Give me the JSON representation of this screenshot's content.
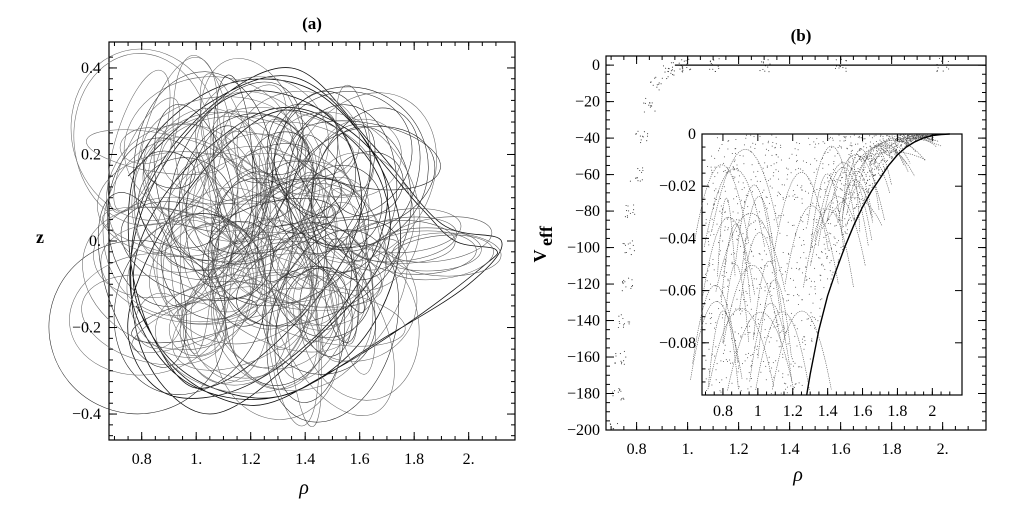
{
  "chart_data": [
    {
      "panel": "(a)",
      "type": "line",
      "title": "(a)",
      "xlabel": "ρ",
      "ylabel": "z",
      "xlim": [
        0.68,
        2.17
      ],
      "ylim": [
        -0.46,
        0.46
      ],
      "xticks": [
        0.8,
        1.0,
        1.2,
        1.4,
        1.6,
        1.8,
        2.0
      ],
      "xtick_labels": [
        "0.8",
        "1.",
        "1.2",
        "1.4",
        "1.6",
        "1.8",
        "2."
      ],
      "yticks": [
        -0.4,
        -0.2,
        0.0,
        0.2,
        0.4
      ],
      "ytick_labels": [
        "−0.4",
        "−0.2",
        "0.",
        "0.2",
        "0.4"
      ],
      "series": [
        {
          "description_kind": "chaotic orbit trajectory",
          "x": [
            0.75,
            1.05,
            1.35,
            1.6,
            1.75,
            1.62,
            1.3,
            0.95,
            0.77,
            0.9,
            1.25,
            1.55,
            1.82,
            1.95,
            2.1,
            2.05,
            1.8,
            1.5,
            1.2,
            0.9,
            0.76,
            0.8,
            1.1,
            1.45,
            1.7,
            1.55,
            1.2,
            0.88,
            0.75,
            0.95,
            1.3,
            1.62,
            1.7,
            1.4,
            1.05,
            0.8,
            0.78,
            1.0,
            1.35,
            1.65,
            1.9,
            2.12,
            2.0,
            1.7,
            1.3,
            0.95,
            0.76,
            0.85,
            1.15,
            1.5,
            1.6,
            1.35,
            1.0,
            0.78
          ],
          "y": [
            0.15,
            0.32,
            0.38,
            0.25,
            0.02,
            -0.22,
            -0.36,
            -0.3,
            -0.1,
            0.12,
            0.3,
            0.26,
            0.08,
            0.0,
            -0.02,
            -0.06,
            -0.18,
            -0.3,
            -0.38,
            -0.28,
            -0.05,
            0.2,
            0.36,
            0.34,
            0.12,
            -0.14,
            -0.33,
            -0.35,
            -0.18,
            0.1,
            0.3,
            0.2,
            -0.02,
            -0.25,
            -0.4,
            -0.25,
            0.05,
            0.28,
            0.4,
            0.22,
            0.04,
            0.0,
            -0.1,
            -0.22,
            -0.36,
            -0.32,
            -0.12,
            0.14,
            0.34,
            0.28,
            0.05,
            -0.2,
            -0.34,
            -0.15
          ]
        }
      ]
    },
    {
      "panel": "(b)",
      "type": "scatter",
      "title": "(b)",
      "xlabel": "ρ",
      "ylabel": "V",
      "ylabel_subscript": "eff",
      "xlim": [
        0.68,
        2.17
      ],
      "ylim": [
        -200,
        5
      ],
      "xticks": [
        0.8,
        1.0,
        1.2,
        1.4,
        1.6,
        1.8,
        2.0
      ],
      "xtick_labels": [
        "0.8",
        "1.",
        "1.2",
        "1.4",
        "1.6",
        "1.8",
        "2."
      ],
      "yticks": [
        0,
        -20,
        -40,
        -60,
        -80,
        -100,
        -120,
        -140,
        -160,
        -180,
        -200
      ],
      "ytick_labels": [
        "0",
        "−20",
        "−40",
        "−60",
        "−80",
        "−100",
        "−120",
        "−140",
        "−160",
        "−180",
        "−200"
      ],
      "series": [
        {
          "description_kind": "effective potential samples",
          "x": [
            0.72,
            0.73,
            0.74,
            0.75,
            0.76,
            0.77,
            0.78,
            0.8,
            0.82,
            0.85,
            0.88,
            0.92,
            0.96,
            1.0,
            1.1,
            1.3,
            1.6,
            2.0
          ],
          "y": [
            -200,
            -180,
            -160,
            -140,
            -120,
            -100,
            -80,
            -60,
            -40,
            -22,
            -10,
            -4,
            -1.5,
            -0.5,
            -0.1,
            0,
            0,
            0
          ]
        }
      ],
      "inset": {
        "type": "scatter",
        "xlim": [
          0.68,
          2.17
        ],
        "ylim": [
          -0.1,
          0.0
        ],
        "xticks": [
          0.8,
          1.0,
          1.2,
          1.4,
          1.6,
          1.8,
          2.0
        ],
        "xtick_labels": [
          "0.8",
          "1",
          "1.2",
          "1.4",
          "1.6",
          "1.8",
          "2"
        ],
        "yticks": [
          0,
          -0.02,
          -0.04,
          -0.06,
          -0.08
        ],
        "ytick_labels": [
          "0",
          "−0.02",
          "−0.04",
          "−0.06",
          "−0.08"
        ],
        "envelope": {
          "x": [
            1.28,
            1.3,
            1.35,
            1.4,
            1.45,
            1.5,
            1.55,
            1.6,
            1.65,
            1.7,
            1.75,
            1.8,
            1.85,
            1.9,
            1.95,
            2.0,
            2.05,
            2.1
          ],
          "y": [
            -0.1,
            -0.092,
            -0.075,
            -0.062,
            -0.052,
            -0.043,
            -0.035,
            -0.028,
            -0.022,
            -0.017,
            -0.012,
            -0.008,
            -0.005,
            -0.003,
            -0.0015,
            -0.0006,
            -0.0002,
            0
          ]
        }
      }
    }
  ]
}
